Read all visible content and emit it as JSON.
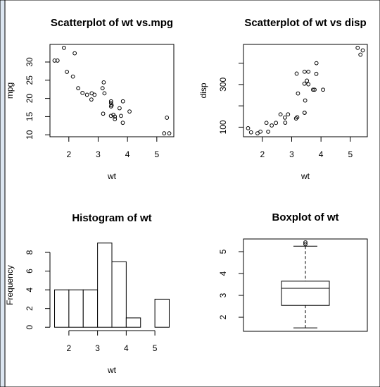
{
  "chart_data": [
    {
      "type": "scatter",
      "title": "Scatterplot of wt vs.mpg",
      "x_label": "wt",
      "y_label": "mpg",
      "x": [
        2.62,
        2.875,
        2.32,
        3.215,
        3.44,
        3.46,
        3.57,
        3.19,
        3.15,
        3.44,
        3.44,
        4.07,
        3.73,
        3.78,
        5.25,
        5.424,
        5.345,
        2.2,
        1.615,
        1.835,
        2.465,
        3.52,
        3.435,
        3.84,
        3.845,
        1.935,
        2.14,
        1.513,
        3.17,
        2.77,
        3.57,
        2.78
      ],
      "values": [
        21,
        21,
        22.8,
        21.4,
        18.7,
        18.1,
        14.3,
        24.4,
        22.8,
        19.2,
        17.8,
        16.4,
        17.3,
        15.2,
        10.4,
        10.4,
        14.7,
        32.4,
        30.4,
        33.9,
        21.5,
        15.5,
        15.2,
        13.3,
        19.2,
        27.3,
        26,
        30.4,
        15.8,
        19.7,
        15,
        21.4
      ],
      "xlim": [
        1.357,
        5.58
      ],
      "xticks": [
        2,
        3,
        4,
        5
      ],
      "ylim": [
        9.46,
        34.84
      ],
      "yticks": [
        10,
        15,
        20,
        25,
        30
      ],
      "color": "#000000"
    },
    {
      "type": "scatter",
      "title": "Scatterplot of wt vs disp",
      "x_label": "wt",
      "y_label": "disp",
      "x": [
        2.62,
        2.875,
        2.32,
        3.215,
        3.44,
        3.46,
        3.57,
        3.19,
        3.15,
        3.44,
        3.44,
        4.07,
        3.73,
        3.78,
        5.25,
        5.424,
        5.345,
        2.2,
        1.615,
        1.835,
        2.465,
        3.52,
        3.435,
        3.84,
        3.845,
        1.935,
        2.14,
        1.513,
        3.17,
        2.77,
        3.57,
        2.78
      ],
      "values": [
        160,
        160,
        108,
        258,
        360,
        225,
        360,
        146.7,
        140.8,
        167.6,
        167.6,
        275.8,
        275.8,
        275.8,
        472,
        460,
        440,
        78.7,
        75.7,
        71.1,
        120.1,
        318,
        304,
        350,
        400,
        79,
        120.3,
        95.1,
        351,
        145,
        301,
        121
      ],
      "xlim": [
        1.357,
        5.58
      ],
      "xticks": [
        2,
        3,
        4,
        5
      ],
      "ylim": [
        55.06,
        488.04
      ],
      "yticks": [
        100,
        300
      ],
      "yticks_unlabeled": [
        200,
        400
      ],
      "color": "#000000"
    },
    {
      "type": "histogram",
      "title": "Histogram of wt",
      "x_label": "wt",
      "y_label": "Frequency",
      "bins": [
        1.5,
        2,
        2.5,
        3,
        3.5,
        4,
        4.5,
        5,
        5.5
      ],
      "values": [
        4,
        4,
        4,
        9,
        7,
        1,
        0,
        3
      ],
      "xlim": [
        1.34,
        5.66
      ],
      "xticks": [
        2,
        3,
        4,
        5
      ],
      "ylim": [
        -0.36,
        9.36
      ],
      "yticks": [
        0,
        2,
        4,
        6,
        8
      ],
      "color": "#ffffff"
    },
    {
      "type": "box",
      "title": "Boxplot of wt",
      "stats": {
        "whisker_low": 1.513,
        "q1": 2.5425,
        "median": 3.325,
        "q3": 3.65,
        "whisker_high": 5.25
      },
      "outliers": [
        5.345,
        5.424
      ],
      "ylim": [
        1.357,
        5.58
      ],
      "yticks": [
        2,
        3,
        4,
        5
      ],
      "color": "#ffffff"
    }
  ]
}
